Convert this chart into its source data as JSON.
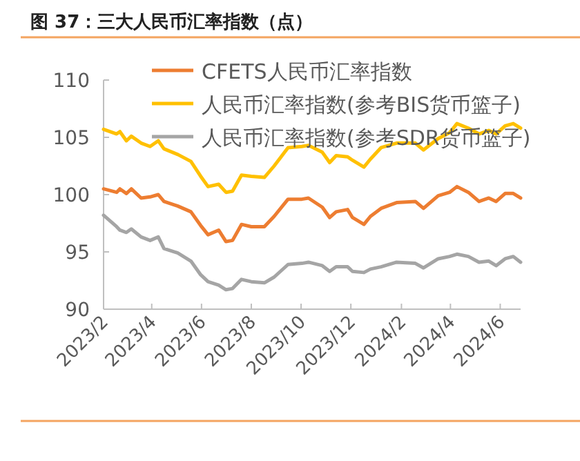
{
  "chart_data": {
    "type": "line",
    "title": "图 37：三大人民币汇率指数（点）",
    "x": [
      "2023-02-01",
      "2023-02-17",
      "2023-02-21",
      "2023-03-01",
      "2023-03-07",
      "2023-03-19",
      "2023-03-30",
      "2023-04-09",
      "2023-04-16",
      "2023-05-03",
      "2023-05-19",
      "2023-05-31",
      "2023-06-09",
      "2023-06-22",
      "2023-07-01",
      "2023-07-09",
      "2023-07-20",
      "2023-08-01",
      "2023-08-17",
      "2023-08-29",
      "2023-09-15",
      "2023-10-02",
      "2023-10-10",
      "2023-10-27",
      "2023-11-05",
      "2023-11-13",
      "2023-11-27",
      "2023-12-03",
      "2023-12-17",
      "2023-12-25",
      "2024-01-07",
      "2024-01-26",
      "2024-02-18",
      "2024-02-28",
      "2024-03-17",
      "2024-03-31",
      "2024-04-09",
      "2024-04-23",
      "2024-05-06",
      "2024-05-18",
      "2024-05-27",
      "2024-06-07",
      "2024-06-17",
      "2024-06-26"
    ],
    "series": [
      {
        "name": "CFETS人民币汇率指数",
        "color": "#ed7d31",
        "values": [
          100.5,
          100.2,
          100.5,
          100.1,
          100.5,
          99.7,
          99.8,
          100.0,
          99.4,
          99.0,
          98.5,
          97.3,
          96.5,
          96.9,
          95.9,
          96.0,
          97.4,
          97.2,
          97.2,
          98.1,
          99.6,
          99.6,
          99.7,
          98.9,
          98.0,
          98.5,
          98.7,
          98.0,
          97.4,
          98.1,
          98.8,
          99.3,
          99.4,
          98.8,
          99.9,
          100.2,
          100.7,
          100.2,
          99.4,
          99.7,
          99.4,
          100.1,
          100.1,
          99.7
        ]
      },
      {
        "name": "人民币汇率指数(参考BIS货币篮子)",
        "color": "#ffc000",
        "values": [
          105.7,
          105.3,
          105.5,
          104.7,
          105.1,
          104.5,
          104.2,
          104.7,
          104.0,
          103.5,
          102.9,
          101.6,
          100.7,
          100.9,
          100.2,
          100.3,
          101.7,
          101.6,
          101.5,
          102.5,
          104.1,
          104.2,
          104.3,
          103.7,
          102.8,
          103.4,
          103.3,
          103.0,
          102.4,
          103.1,
          104.1,
          104.5,
          104.5,
          103.9,
          104.9,
          105.4,
          106.2,
          105.8,
          105.3,
          105.6,
          105.3,
          106.0,
          106.2,
          105.8
        ]
      },
      {
        "name": "人民币汇率指数(参考SDR货币篮子)",
        "color": "#a5a5a5",
        "values": [
          98.2,
          97.2,
          96.9,
          96.7,
          97.0,
          96.3,
          96.0,
          96.3,
          95.3,
          94.9,
          94.2,
          93.0,
          92.4,
          92.1,
          91.7,
          91.8,
          92.6,
          92.4,
          92.3,
          92.8,
          93.9,
          94.0,
          94.1,
          93.8,
          93.3,
          93.7,
          93.7,
          93.3,
          93.2,
          93.5,
          93.7,
          94.1,
          94.0,
          93.6,
          94.4,
          94.6,
          94.8,
          94.6,
          94.1,
          94.2,
          93.8,
          94.4,
          94.6,
          94.1
        ]
      }
    ],
    "xlim": [
      "2023-02-01",
      "2024-06-26"
    ],
    "xticks": [
      {
        "value": "2023-02-01",
        "label": "2023/2"
      },
      {
        "value": "2023-04-01",
        "label": "2023/4"
      },
      {
        "value": "2023-06-01",
        "label": "2023/6"
      },
      {
        "value": "2023-08-01",
        "label": "2023/8"
      },
      {
        "value": "2023-10-01",
        "label": "2023/10"
      },
      {
        "value": "2023-12-01",
        "label": "2023/12"
      },
      {
        "value": "2024-02-01",
        "label": "2024/2"
      },
      {
        "value": "2024-04-01",
        "label": "2024/4"
      },
      {
        "value": "2024-06-01",
        "label": "2024/6"
      }
    ],
    "ylim": [
      90,
      110
    ],
    "yticks": [
      90,
      95,
      100,
      105,
      110
    ],
    "legend": "top",
    "grid": false,
    "marker": "none",
    "line_style": "solid"
  }
}
